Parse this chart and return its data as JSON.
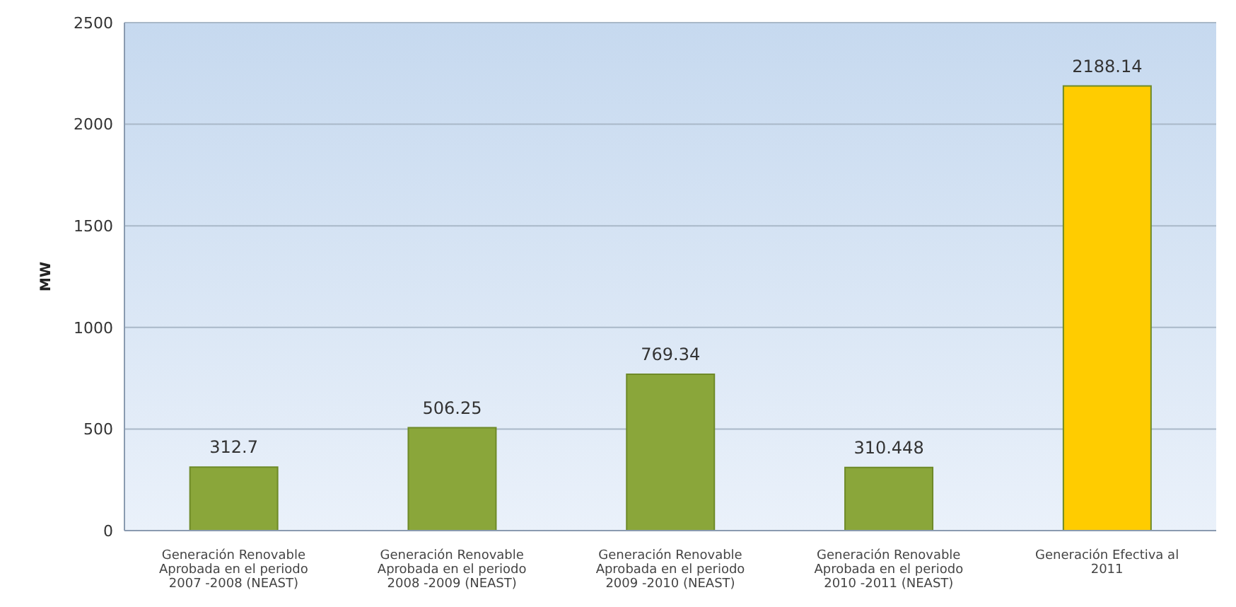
{
  "chart_data": {
    "type": "bar",
    "ylabel": "MW",
    "categories": [
      "Generación  Renovable Aprobada en el periodo 2007 -2008 (NEAST)",
      "Generación  Renovable Aprobada en el periodo 2008 -2009 (NEAST)",
      "Generación  Renovable Aprobada en el periodo 2009 -2010 (NEAST)",
      "Generación  Renovable Aprobada en el periodo 2010 -2011 (NEAST)",
      "Generación Efectiva al 2011"
    ],
    "values": [
      312.7,
      506.25,
      769.34,
      310.448,
      2188.14
    ],
    "colors": [
      "#8aa63a",
      "#8aa63a",
      "#8aa63a",
      "#8aa63a",
      "#ffcc00"
    ],
    "data_labels": true,
    "ylim": [
      0,
      2500
    ],
    "yticks": [
      0,
      500,
      1000,
      1500,
      2000,
      2500
    ],
    "grid": "y"
  }
}
